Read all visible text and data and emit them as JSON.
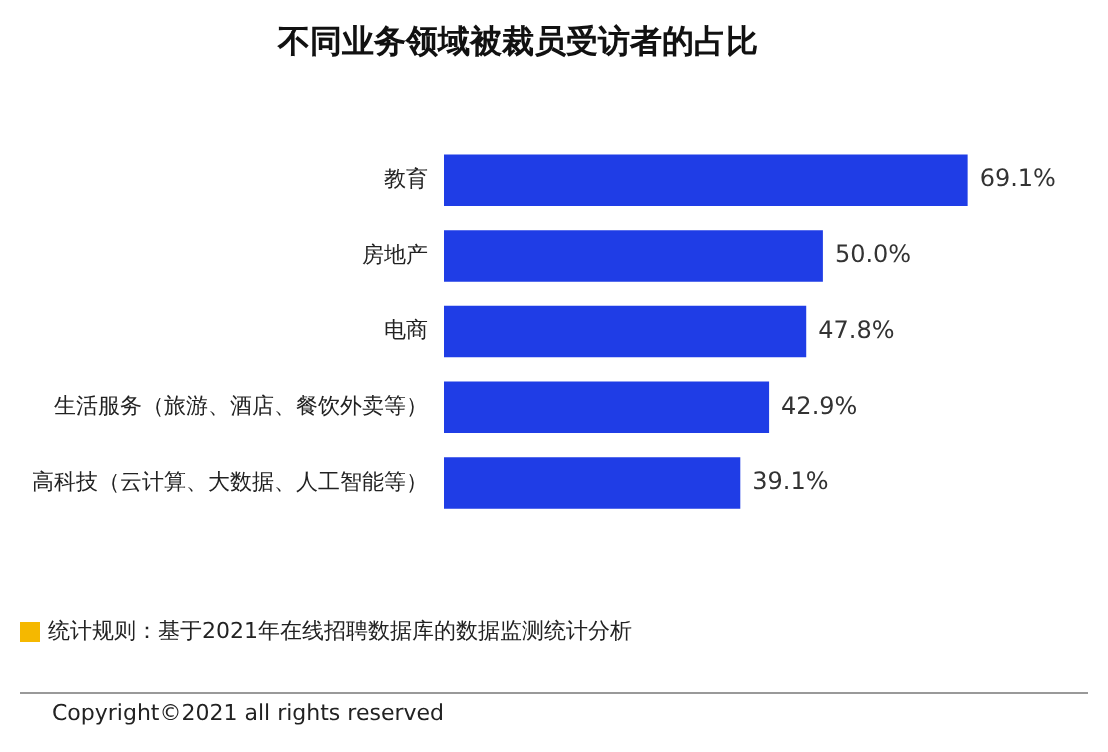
{
  "chart_data": {
    "type": "bar",
    "orientation": "horizontal",
    "title": "不同业务领域被裁员受访者的占比",
    "categories": [
      "教育",
      "房地产",
      "电商",
      "生活服务（旅游、酒店、餐饮外卖等）",
      "高科技（云计算、大数据、人工智能等）"
    ],
    "values": [
      69.1,
      50.0,
      47.8,
      42.9,
      39.1
    ],
    "value_labels": [
      "69.1%",
      "50.0%",
      "47.8%",
      "42.9%",
      "39.1%"
    ],
    "color": "#1f3de6",
    "grid": false,
    "legend": false,
    "tick_labels": "y",
    "annotations": [
      "统计规则：基于2021年在线招聘数据库的数据监测统计分析",
      "Copyright©2021 all rights reserved"
    ]
  }
}
